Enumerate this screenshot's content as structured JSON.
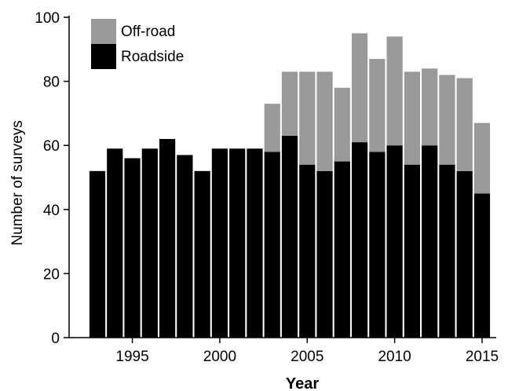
{
  "chart_data": {
    "type": "bar",
    "stacked": true,
    "title": "",
    "xlabel": "Year",
    "ylabel": "Number of surveys",
    "ylim": [
      0,
      100
    ],
    "yticks": [
      0,
      20,
      40,
      60,
      80,
      100
    ],
    "xticks": [
      1995,
      2000,
      2005,
      2010,
      2015
    ],
    "grid": false,
    "legend_position": "top-left",
    "x": [
      1993,
      1994,
      1995,
      1996,
      1997,
      1998,
      1999,
      2000,
      2001,
      2002,
      2003,
      2004,
      2005,
      2006,
      2007,
      2008,
      2009,
      2010,
      2011,
      2012,
      2013,
      2014,
      2015
    ],
    "series": [
      {
        "name": "Roadside",
        "color": "#000000",
        "values": [
          52,
          59,
          56,
          59,
          62,
          57,
          52,
          59,
          59,
          59,
          58,
          63,
          54,
          52,
          55,
          61,
          58,
          60,
          54,
          60,
          54,
          52,
          45
        ]
      },
      {
        "name": "Off-road",
        "color": "#999999",
        "values": [
          0,
          0,
          0,
          0,
          0,
          0,
          0,
          0,
          0,
          0,
          15,
          20,
          29,
          31,
          23,
          34,
          29,
          34,
          29,
          24,
          28,
          29,
          22
        ]
      }
    ]
  }
}
